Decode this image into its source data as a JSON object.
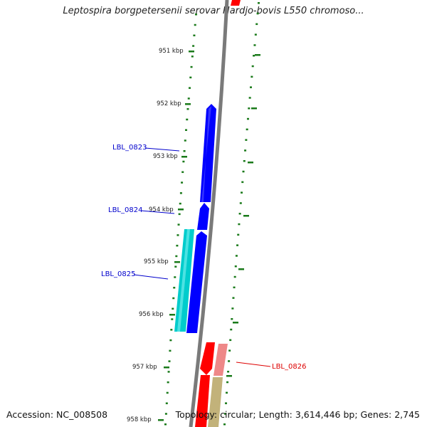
{
  "title": "Leptospira borgpetersenii serovar Hardjo-bovis L550 chromoso...",
  "footer": {
    "accession": "Accession: NC_008508",
    "summary": "Topology: circular; Length: 3,614,446 bp; Genes: 2,745"
  },
  "kbp_ticks": [
    {
      "label": "951 kbp"
    },
    {
      "label": "952 kbp"
    },
    {
      "label": "953 kbp"
    },
    {
      "label": "954 kbp"
    },
    {
      "label": "955 kbp"
    },
    {
      "label": "956 kbp"
    },
    {
      "label": "957 kbp"
    },
    {
      "label": "958 kbp"
    }
  ],
  "gene_labels": [
    {
      "text": "LBL_0823",
      "color": "#0000cc"
    },
    {
      "text": "LBL_0824",
      "color": "#0000cc"
    },
    {
      "text": "LBL_0825",
      "color": "#0000cc"
    },
    {
      "text": "LBL_0826",
      "color": "#dd0000"
    }
  ],
  "colors": {
    "backbone": "#7a7a7a",
    "tick_dots": "#1a7a1a",
    "forward_cds": "#0000ff",
    "forward_cds_alt": "#00cccc",
    "reverse_cds": "#ff0000",
    "reverse_cds_alt": "#ee8888",
    "other_feature": "#c2b27a"
  }
}
